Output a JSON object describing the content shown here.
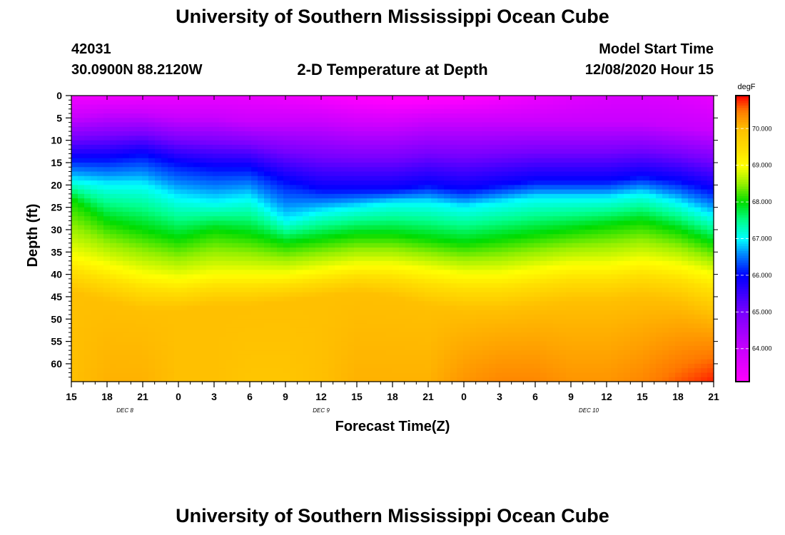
{
  "header": {
    "title": "University of Southern Mississippi Ocean Cube",
    "station_id": "42031",
    "station_coords": "30.0900N 88.2120W",
    "plot_title": "2-D Temperature at Depth",
    "model_start_label": "Model Start Time",
    "model_start_value": "12/08/2020 Hour 15"
  },
  "footer": {
    "title": "University of Southern Mississippi Ocean Cube"
  },
  "colors": {
    "background": "#ffffff",
    "axis": "#000000"
  },
  "chart_data": {
    "type": "heatmap",
    "title": "2-D Temperature at Depth",
    "xlabel": "Forecast Time(Z)",
    "ylabel": "Depth (ft)",
    "x_tick_labels": [
      "15",
      "18",
      "21",
      "0",
      "3",
      "6",
      "9",
      "12",
      "15",
      "18",
      "21",
      "0",
      "3",
      "6",
      "9",
      "12",
      "15",
      "18",
      "21"
    ],
    "x_range_hours": [
      0,
      54
    ],
    "day_labels": [
      {
        "label": "DEC 8",
        "hour": 4.5
      },
      {
        "label": "DEC 9",
        "hour": 21
      },
      {
        "label": "DEC 10",
        "hour": 43.5
      }
    ],
    "y_tick_labels": [
      "0",
      "5",
      "10",
      "15",
      "20",
      "25",
      "30",
      "35",
      "40",
      "45",
      "50",
      "55",
      "60"
    ],
    "y_range_ft": [
      0,
      64
    ],
    "colorbar": {
      "units": "degF",
      "range": [
        63.1,
        70.9
      ],
      "tick_values": [
        64.0,
        65.0,
        66.0,
        67.0,
        68.0,
        69.0,
        70.0
      ],
      "tick_labels": [
        "64.000",
        "65.000",
        "66.000",
        "67.000",
        "68.000",
        "69.000",
        "70.000"
      ]
    },
    "layers": {
      "hours": [
        0,
        3,
        6,
        9,
        12,
        15,
        18,
        21,
        24,
        27,
        30,
        33,
        36,
        39,
        42,
        45,
        48,
        51,
        54
      ],
      "depth_64F": [
        5,
        4,
        4,
        5,
        5,
        6,
        6,
        6,
        7,
        7,
        6,
        6,
        6,
        6,
        6,
        6,
        6,
        7,
        8
      ],
      "depth_66F": [
        14,
        14,
        13,
        15,
        16,
        16,
        19,
        21,
        21,
        21,
        20,
        21,
        20,
        19,
        19,
        19,
        18,
        19,
        21
      ],
      "depth_67F": [
        19,
        20,
        20,
        23,
        24,
        23,
        28,
        26,
        25,
        24,
        24,
        25,
        24,
        23,
        23,
        23,
        22,
        24,
        27
      ],
      "depth_68F": [
        23,
        28,
        30,
        32,
        30,
        31,
        33,
        32,
        31,
        31,
        32,
        33,
        32,
        31,
        30,
        29,
        28,
        30,
        33
      ],
      "depth_69F": [
        36,
        38,
        40,
        41,
        40,
        40,
        40,
        39,
        38,
        38,
        39,
        40,
        40,
        39,
        38,
        38,
        37,
        38,
        40
      ],
      "depth_70F": [
        44,
        46,
        48,
        48,
        47,
        47,
        46,
        45,
        44,
        45,
        47,
        48,
        48,
        47,
        46,
        46,
        45,
        46,
        49
      ],
      "bottom_temp": [
        70.0,
        70.1,
        70.1,
        70.0,
        70.0,
        69.9,
        69.9,
        70.0,
        70.1,
        70.1,
        70.1,
        70.3,
        70.4,
        70.4,
        70.3,
        70.3,
        70.4,
        70.6,
        70.8
      ]
    }
  }
}
